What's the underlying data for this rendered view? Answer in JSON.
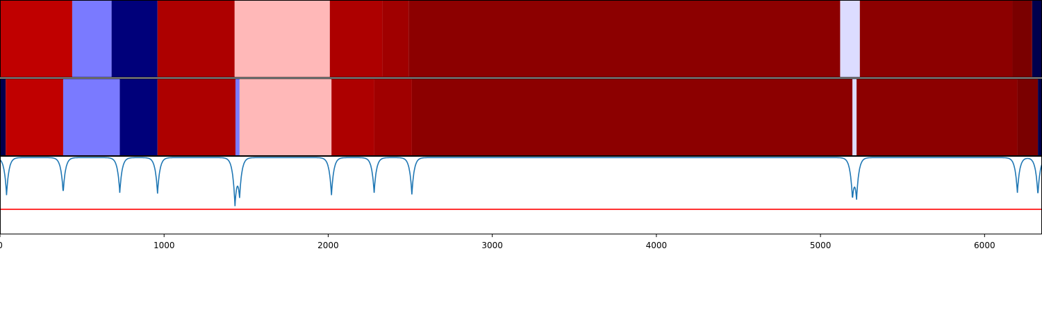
{
  "chart_data": [
    {
      "type": "heatmap",
      "title": "",
      "xlim": [
        0,
        6350
      ],
      "colormap": "seismic",
      "segments": [
        {
          "start": 0,
          "end": 440,
          "color": "#c00000"
        },
        {
          "start": 440,
          "end": 680,
          "color": "#7a7aff"
        },
        {
          "start": 680,
          "end": 960,
          "color": "#00007a"
        },
        {
          "start": 960,
          "end": 1430,
          "color": "#ad0000"
        },
        {
          "start": 1430,
          "end": 2010,
          "color": "#ffb8b8"
        },
        {
          "start": 2010,
          "end": 2330,
          "color": "#ad0000"
        },
        {
          "start": 2330,
          "end": 2490,
          "color": "#a00000"
        },
        {
          "start": 2490,
          "end": 5120,
          "color": "#8c0000"
        },
        {
          "start": 5120,
          "end": 5240,
          "color": "#dcdcff"
        },
        {
          "start": 5240,
          "end": 6170,
          "color": "#8c0000"
        },
        {
          "start": 6170,
          "end": 6290,
          "color": "#7a0000"
        },
        {
          "start": 6290,
          "end": 6350,
          "color": "#00004d"
        }
      ]
    },
    {
      "type": "heatmap",
      "title": "",
      "xlim": [
        0,
        6350
      ],
      "colormap": "seismic",
      "segments": [
        {
          "start": 0,
          "end": 35,
          "color": "#00004d"
        },
        {
          "start": 35,
          "end": 385,
          "color": "#c00000"
        },
        {
          "start": 385,
          "end": 730,
          "color": "#7a7aff"
        },
        {
          "start": 730,
          "end": 960,
          "color": "#00007a"
        },
        {
          "start": 960,
          "end": 1435,
          "color": "#ad0000"
        },
        {
          "start": 1435,
          "end": 1460,
          "color": "#7a7aff"
        },
        {
          "start": 1460,
          "end": 2020,
          "color": "#ffb8b8"
        },
        {
          "start": 2020,
          "end": 2280,
          "color": "#ad0000"
        },
        {
          "start": 2280,
          "end": 2510,
          "color": "#a00000"
        },
        {
          "start": 2510,
          "end": 5195,
          "color": "#8c0000"
        },
        {
          "start": 5195,
          "end": 5220,
          "color": "#dcdcff"
        },
        {
          "start": 5220,
          "end": 6200,
          "color": "#8c0000"
        },
        {
          "start": 6200,
          "end": 6325,
          "color": "#7a0000"
        },
        {
          "start": 6325,
          "end": 6350,
          "color": "#00004d"
        }
      ]
    },
    {
      "type": "line",
      "title": "",
      "xlabel": "",
      "ylabel": "",
      "xlim": [
        0,
        6350
      ],
      "ylim": [
        0,
        1
      ],
      "grid": false,
      "xticks": [
        0,
        1000,
        2000,
        3000,
        4000,
        5000,
        6000
      ],
      "xtick_labels": [
        "0",
        "1000",
        "2000",
        "3000",
        "4000",
        "5000",
        "6000"
      ],
      "series": [
        {
          "color": "#1f77b4",
          "baseline": 0.98,
          "x": [
            0,
            40,
            385,
            730,
            960,
            1432,
            1460,
            2020,
            2280,
            2510,
            5195,
            5220,
            6200,
            6325,
            6350
          ],
          "dips": [
            {
              "x": 40,
              "min": 0.5
            },
            {
              "x": 385,
              "min": 0.53
            },
            {
              "x": 730,
              "min": 0.53
            },
            {
              "x": 960,
              "min": 0.52
            },
            {
              "x": 1432,
              "min": 0.42
            },
            {
              "x": 1460,
              "min": 0.54
            },
            {
              "x": 2020,
              "min": 0.5
            },
            {
              "x": 2280,
              "min": 0.53
            },
            {
              "x": 2510,
              "min": 0.51
            },
            {
              "x": 5195,
              "min": 0.52
            },
            {
              "x": 5220,
              "min": 0.52
            },
            {
              "x": 6200,
              "min": 0.53
            },
            {
              "x": 6325,
              "min": 0.5
            }
          ]
        },
        {
          "color": "#ff0000",
          "x": [
            0,
            6350
          ],
          "values": [
            0.32,
            0.32
          ]
        }
      ]
    }
  ]
}
